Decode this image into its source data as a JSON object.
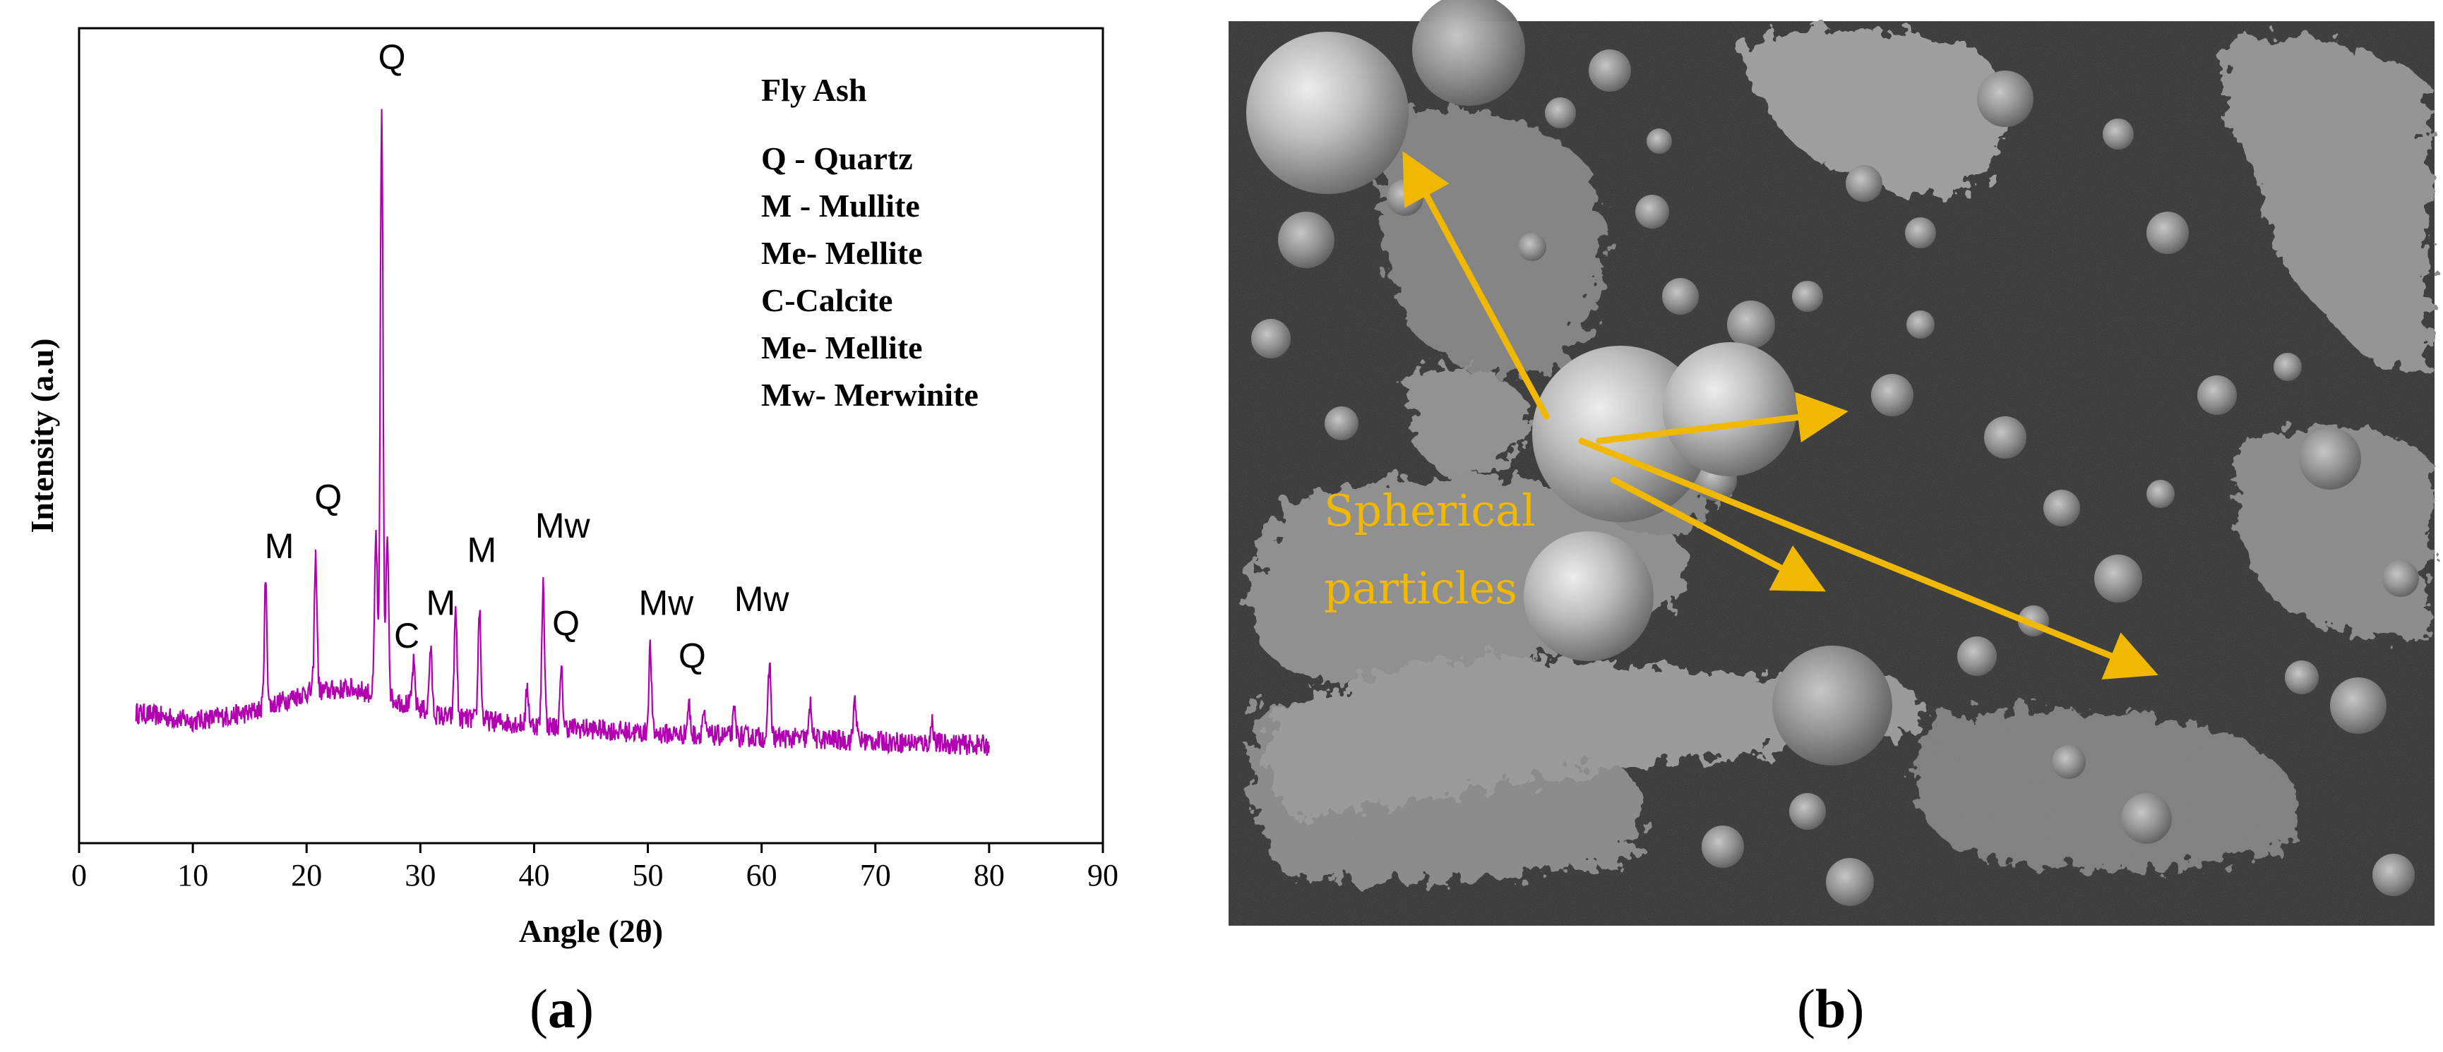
{
  "chart_data": {
    "type": "line",
    "title": "",
    "xlabel": "Angle (2θ)",
    "ylabel": "Intensity (a.u)",
    "xlim": [
      0,
      90
    ],
    "xticks": [
      0,
      10,
      20,
      30,
      40,
      50,
      60,
      70,
      80,
      90
    ],
    "ylim": [
      0,
      100
    ],
    "series": [
      {
        "color": "#b000b0",
        "baseline": [
          [
            5,
            16
          ],
          [
            10,
            15
          ],
          [
            15,
            16
          ],
          [
            20,
            18.5
          ],
          [
            24,
            19
          ],
          [
            28,
            17.5
          ],
          [
            32,
            15.5
          ],
          [
            40,
            14.5
          ],
          [
            50,
            13.5
          ],
          [
            60,
            13
          ],
          [
            70,
            12.5
          ],
          [
            80,
            12
          ]
        ],
        "peaks": [
          {
            "x": 16.4,
            "y": 32
          },
          {
            "x": 20.8,
            "y": 35
          },
          {
            "x": 26.1,
            "y": 38
          },
          {
            "x": 26.6,
            "y": 90
          },
          {
            "x": 27.1,
            "y": 38
          },
          {
            "x": 29.4,
            "y": 22
          },
          {
            "x": 30.9,
            "y": 24
          },
          {
            "x": 33.1,
            "y": 29
          },
          {
            "x": 35.2,
            "y": 29
          },
          {
            "x": 39.4,
            "y": 19
          },
          {
            "x": 40.8,
            "y": 32
          },
          {
            "x": 42.4,
            "y": 21
          },
          {
            "x": 50.2,
            "y": 24
          },
          {
            "x": 53.6,
            "y": 17
          },
          {
            "x": 54.9,
            "y": 16
          },
          {
            "x": 57.6,
            "y": 16
          },
          {
            "x": 60.7,
            "y": 22
          },
          {
            "x": 64.3,
            "y": 17
          },
          {
            "x": 68.2,
            "y": 18
          },
          {
            "x": 75.0,
            "y": 15
          }
        ]
      }
    ],
    "peak_labels": [
      {
        "text": "Q",
        "x": 27.5,
        "y": 95
      },
      {
        "text": "M",
        "x": 17.6,
        "y": 35
      },
      {
        "text": "Q",
        "x": 21.9,
        "y": 41
      },
      {
        "text": "C",
        "x": 28.8,
        "y": 24
      },
      {
        "text": "M",
        "x": 31.8,
        "y": 28
      },
      {
        "text": "M",
        "x": 35.4,
        "y": 34.5
      },
      {
        "text": "Mw",
        "x": 42.5,
        "y": 37.5
      },
      {
        "text": "Q",
        "x": 42.8,
        "y": 25.5
      },
      {
        "text": "Mw",
        "x": 51.6,
        "y": 28
      },
      {
        "text": "Q",
        "x": 53.9,
        "y": 21.5
      },
      {
        "text": "Mw",
        "x": 60.0,
        "y": 28.5
      }
    ],
    "legend_title": "Fly Ash",
    "legend_items": [
      "Q - Quartz",
      "M - Mullite",
      "Me- Mellite",
      "C-Calcite",
      "Me- Mellite",
      "Mw- Merwinite"
    ],
    "legend_position": "top-right",
    "grid": false
  },
  "captions": {
    "a": [
      "(",
      "a",
      ")"
    ],
    "b": [
      "(",
      "b",
      ")"
    ]
  },
  "sem_image": {
    "annotation_lines": [
      "Spherical",
      "particles"
    ],
    "annotation_color": "#f0b800",
    "background_color": "#2e2e2e"
  }
}
